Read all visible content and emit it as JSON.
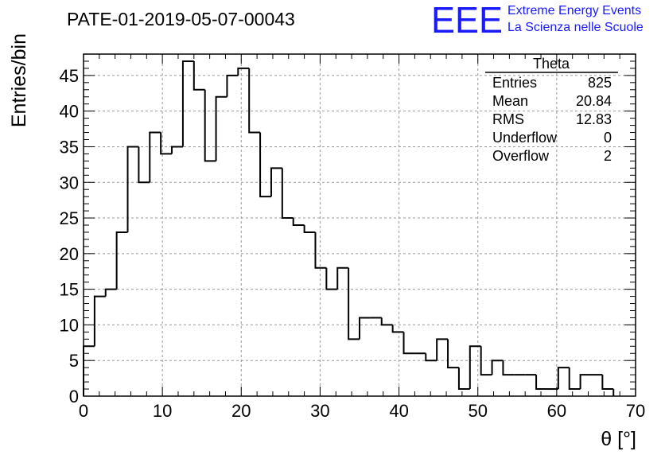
{
  "run_title": "PATE-01-2019-05-07-00043",
  "logo": {
    "mark": "EEE",
    "line1": "Extreme Energy Events",
    "line2": "La Scienza nelle Scuole",
    "color": "#1a1aff"
  },
  "stats_box": {
    "title": "Theta",
    "rows": [
      {
        "label": "Entries",
        "value": "825"
      },
      {
        "label": "Mean",
        "value": "20.84"
      },
      {
        "label": "RMS",
        "value": "12.83"
      },
      {
        "label": "Underflow",
        "value": "0"
      },
      {
        "label": "Overflow",
        "value": "2"
      }
    ]
  },
  "chart_data": {
    "type": "bar",
    "style": "step-histogram",
    "xlabel": "θ [°]",
    "ylabel": "Entries/bin",
    "xlim": [
      0,
      70
    ],
    "ylim": [
      0,
      48
    ],
    "bin_width": 1.4,
    "bin_start": 0,
    "values": [
      7,
      14,
      15,
      23,
      35,
      30,
      37,
      34,
      35,
      47,
      43,
      33,
      42,
      45,
      46,
      37,
      28,
      32,
      25,
      24,
      23,
      18,
      15,
      18,
      8,
      11,
      11,
      10,
      9,
      6,
      6,
      5,
      8,
      4,
      1,
      7,
      3,
      5,
      3,
      3,
      3,
      1,
      1,
      4,
      1,
      3,
      3,
      1
    ],
    "xticks": [
      "0",
      "10",
      "20",
      "30",
      "40",
      "50",
      "60",
      "70"
    ],
    "yticks": [
      "0",
      "5",
      "10",
      "15",
      "20",
      "25",
      "30",
      "35",
      "40",
      "45"
    ],
    "grid": true,
    "line_color": "#000000"
  }
}
